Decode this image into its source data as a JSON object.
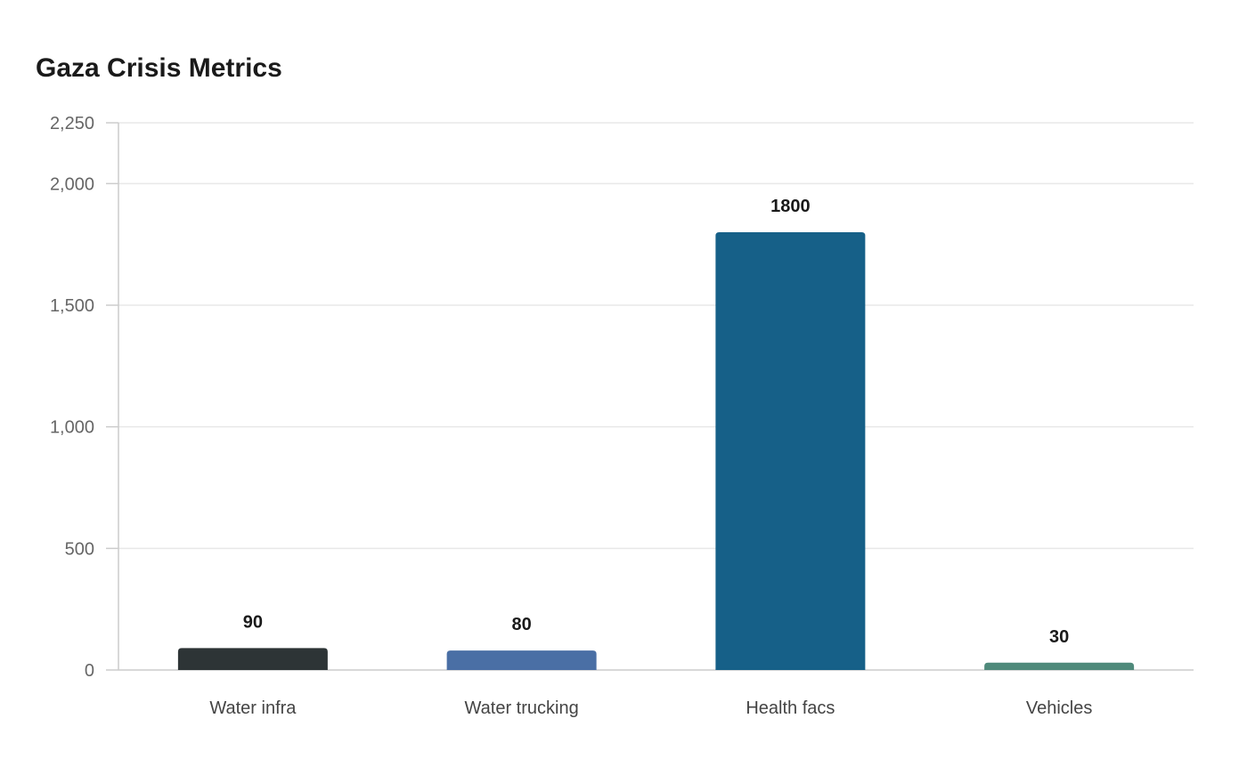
{
  "chart_data": {
    "type": "bar",
    "title": "Gaza Crisis Metrics",
    "xlabel": "",
    "ylabel": "",
    "categories": [
      "Water infra",
      "Water trucking",
      "Health facs",
      "Vehicles"
    ],
    "values": [
      90,
      80,
      1800,
      30
    ],
    "value_labels": [
      "90",
      "80",
      "1800",
      "30"
    ],
    "colors": [
      "#2d3436",
      "#4a6fa5",
      "#166088",
      "#4f8a7b"
    ],
    "ylim": [
      0,
      2250
    ],
    "yticks": [
      0,
      500,
      1000,
      1500,
      2000,
      2250
    ],
    "ytick_labels": [
      "0",
      "500",
      "1,000",
      "1,500",
      "2,000",
      "2,250"
    ],
    "grid": true,
    "legend": "none"
  }
}
